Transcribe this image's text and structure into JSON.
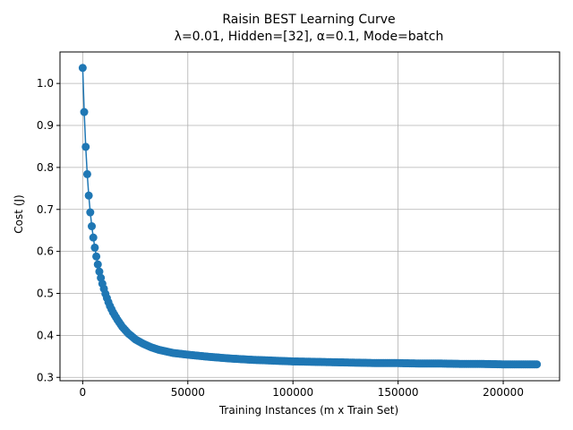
{
  "chart_data": {
    "type": "line",
    "title": "Raisin BEST Learning Curve",
    "subtitle": "λ=0.01,  Hidden=[32], α=0.1, Mode=batch",
    "xlabel": "Training Instances (m x Train Set)",
    "ylabel": "Cost (J)",
    "xlim": [
      -10800,
      226800
    ],
    "ylim": [
      0.292,
      1.075
    ],
    "xticks": [
      0,
      50000,
      100000,
      150000,
      200000
    ],
    "yticks": [
      0.3,
      0.4,
      0.5,
      0.6,
      0.7,
      0.8,
      0.9,
      1.0
    ],
    "ytick_labels": [
      "0.3",
      "0.4",
      "0.5",
      "0.6",
      "0.7",
      "0.8",
      "0.9",
      "1.0"
    ],
    "grid": true,
    "series_color": "#1f77b4",
    "marker": "circle",
    "x_step": 720,
    "x_end": 216000,
    "y_sampled": {
      "x": [
        0,
        720,
        1440,
        2160,
        2880,
        3600,
        4320,
        5040,
        5760,
        6480,
        7200,
        7920,
        8640,
        9360,
        10080,
        10800,
        11520,
        12240,
        12960,
        14400,
        16560,
        18720,
        21600,
        25200,
        28800,
        32400,
        36000,
        43200,
        50000,
        60000,
        70000,
        80000,
        90000,
        100000,
        110000,
        120000,
        130000,
        140000,
        150000,
        160000,
        170000,
        180000,
        190000,
        200000,
        210000,
        216000
      ],
      "y": [
        1.037,
        0.932,
        0.849,
        0.784,
        0.733,
        0.693,
        0.66,
        0.633,
        0.609,
        0.588,
        0.569,
        0.552,
        0.537,
        0.523,
        0.511,
        0.499,
        0.489,
        0.479,
        0.47,
        0.455,
        0.437,
        0.421,
        0.405,
        0.39,
        0.38,
        0.372,
        0.366,
        0.358,
        0.354,
        0.349,
        0.345,
        0.342,
        0.34,
        0.338,
        0.337,
        0.336,
        0.335,
        0.334,
        0.334,
        0.333,
        0.333,
        0.332,
        0.332,
        0.331,
        0.331,
        0.331
      ]
    }
  }
}
